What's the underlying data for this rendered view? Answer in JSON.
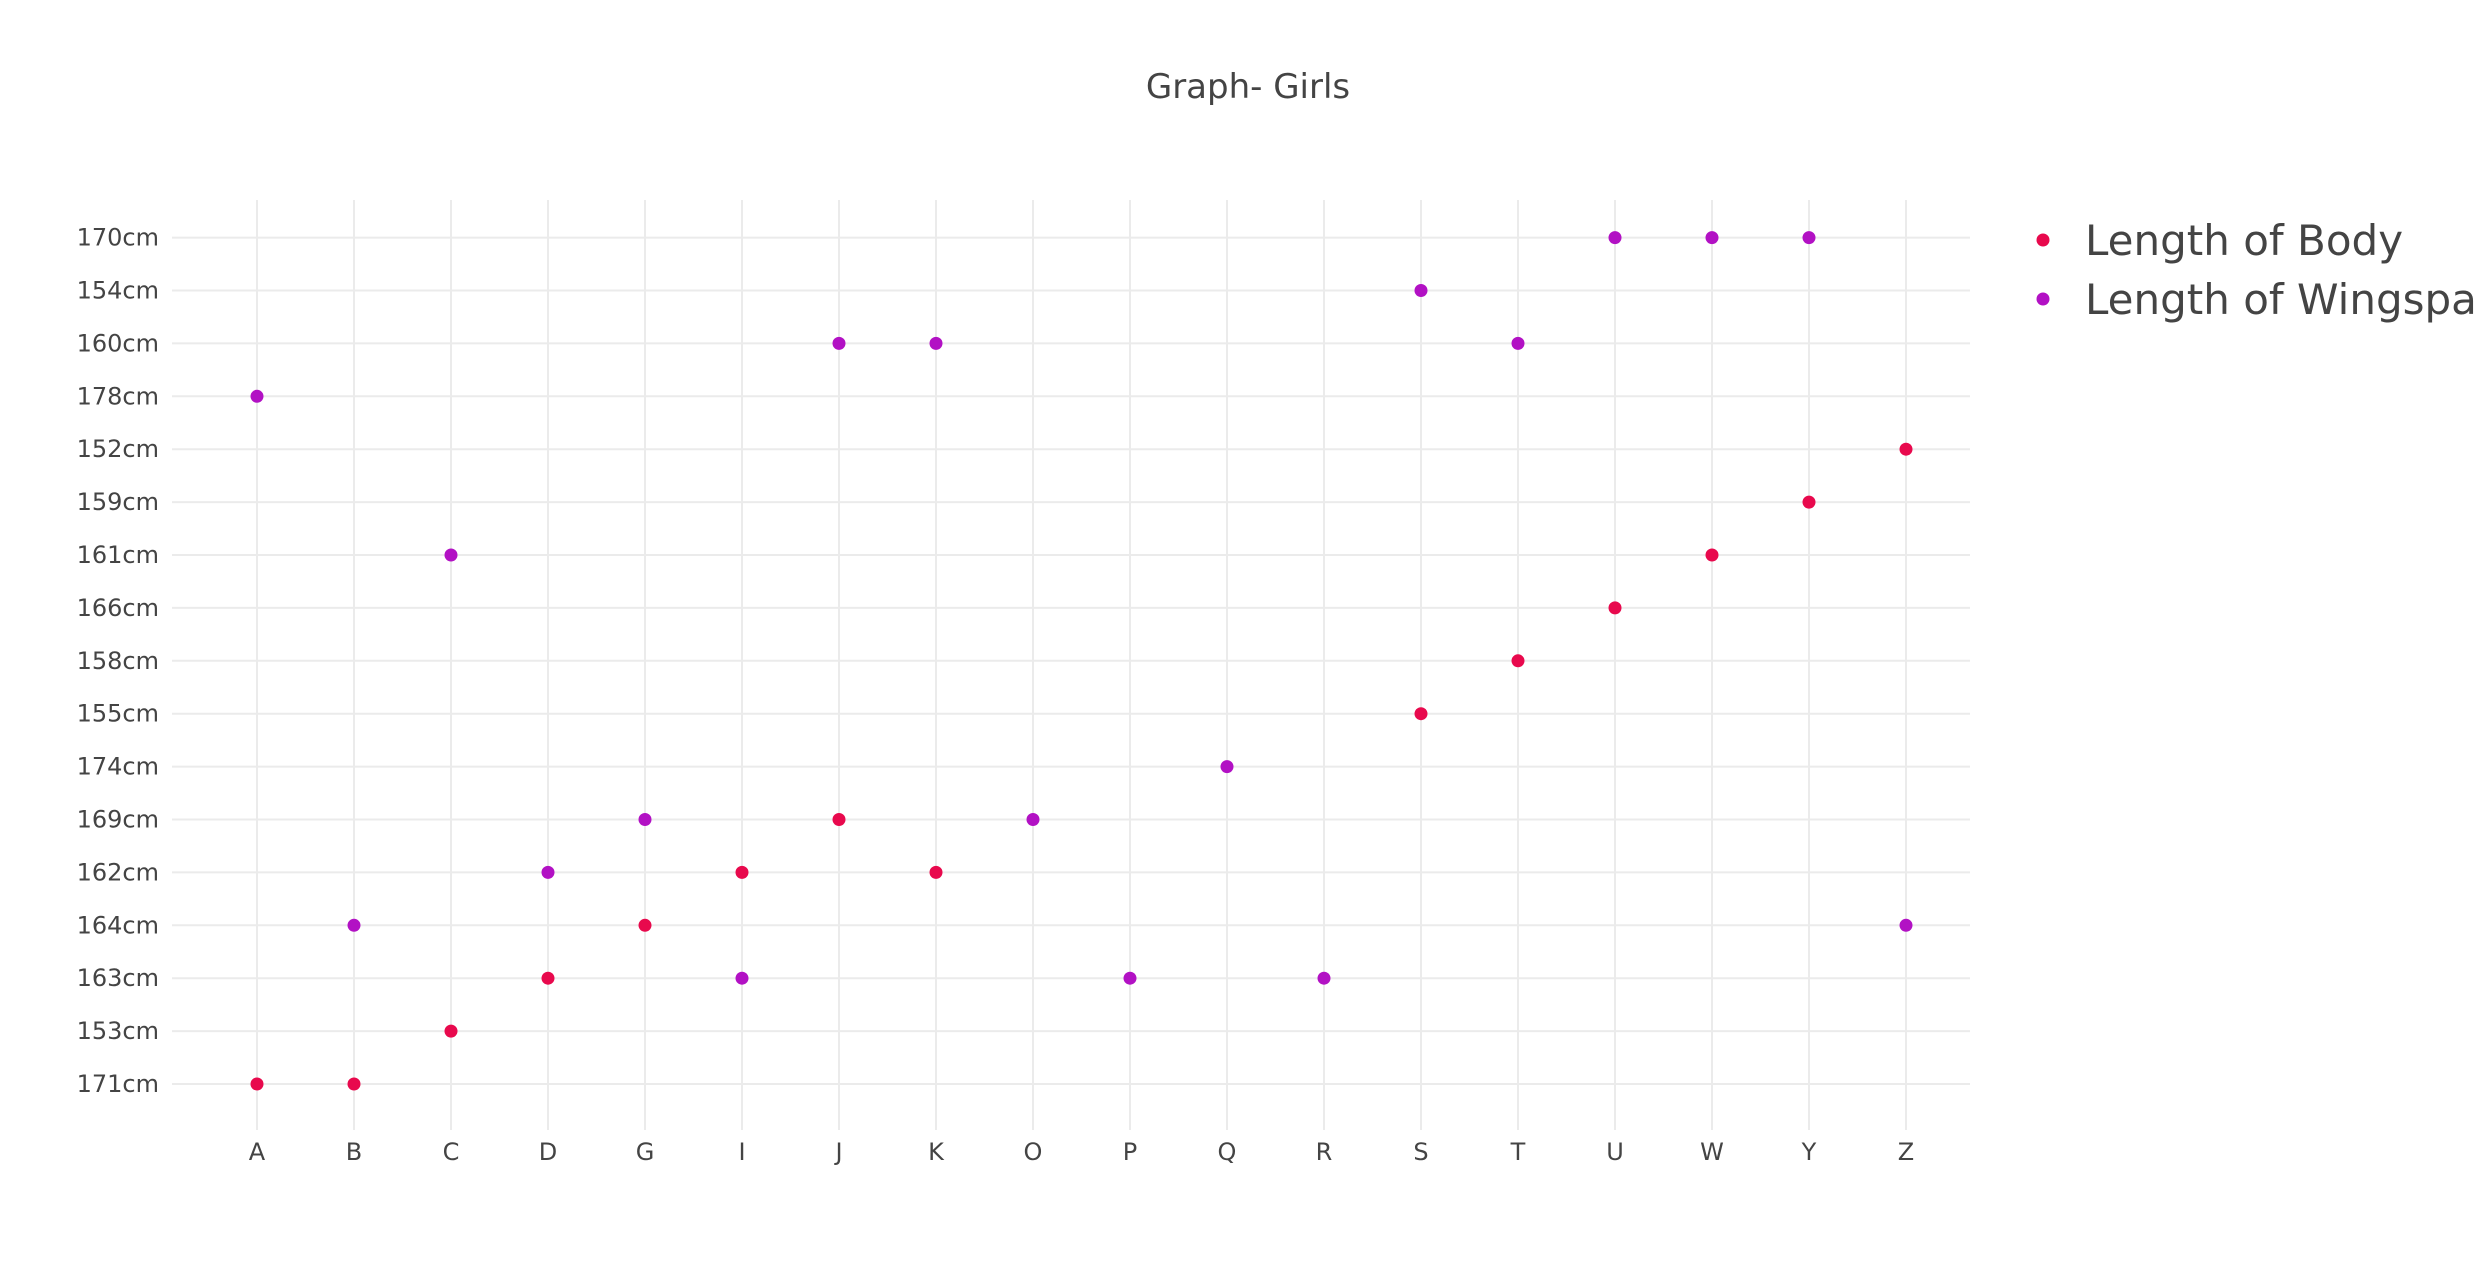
{
  "chart_data": {
    "type": "scatter",
    "title": "Graph- Girls",
    "xlabel": "",
    "ylabel": "",
    "x_categories": [
      "A",
      "B",
      "C",
      "D",
      "G",
      "I",
      "J",
      "K",
      "O",
      "P",
      "Q",
      "R",
      "S",
      "T",
      "U",
      "W",
      "Y",
      "Z"
    ],
    "y_categories": [
      "171cm",
      "153cm",
      "163cm",
      "164cm",
      "162cm",
      "169cm",
      "174cm",
      "155cm",
      "158cm",
      "166cm",
      "161cm",
      "159cm",
      "152cm",
      "178cm",
      "160cm",
      "154cm",
      "170cm"
    ],
    "grid": true,
    "legend_position": "top-right",
    "series": [
      {
        "name": "Length of Body",
        "color": "#e8094d",
        "points": [
          {
            "x": "A",
            "y": "171cm"
          },
          {
            "x": "B",
            "y": "171cm"
          },
          {
            "x": "C",
            "y": "153cm"
          },
          {
            "x": "D",
            "y": "163cm"
          },
          {
            "x": "G",
            "y": "164cm"
          },
          {
            "x": "I",
            "y": "162cm"
          },
          {
            "x": "J",
            "y": "169cm"
          },
          {
            "x": "K",
            "y": "162cm"
          },
          {
            "x": "S",
            "y": "155cm"
          },
          {
            "x": "T",
            "y": "158cm"
          },
          {
            "x": "U",
            "y": "166cm"
          },
          {
            "x": "W",
            "y": "161cm"
          },
          {
            "x": "Y",
            "y": "159cm"
          },
          {
            "x": "Z",
            "y": "152cm"
          }
        ]
      },
      {
        "name": "Length of Wingspan",
        "color": "#b211c4",
        "points": [
          {
            "x": "A",
            "y": "178cm"
          },
          {
            "x": "B",
            "y": "164cm"
          },
          {
            "x": "C",
            "y": "161cm"
          },
          {
            "x": "D",
            "y": "162cm"
          },
          {
            "x": "G",
            "y": "169cm"
          },
          {
            "x": "I",
            "y": "163cm"
          },
          {
            "x": "J",
            "y": "160cm"
          },
          {
            "x": "K",
            "y": "160cm"
          },
          {
            "x": "O",
            "y": "169cm"
          },
          {
            "x": "P",
            "y": "163cm"
          },
          {
            "x": "Q",
            "y": "174cm"
          },
          {
            "x": "R",
            "y": "163cm"
          },
          {
            "x": "S",
            "y": "154cm"
          },
          {
            "x": "T",
            "y": "160cm"
          },
          {
            "x": "U",
            "y": "170cm"
          },
          {
            "x": "W",
            "y": "170cm"
          },
          {
            "x": "Y",
            "y": "170cm"
          },
          {
            "x": "Z",
            "y": "164cm"
          }
        ]
      }
    ]
  }
}
